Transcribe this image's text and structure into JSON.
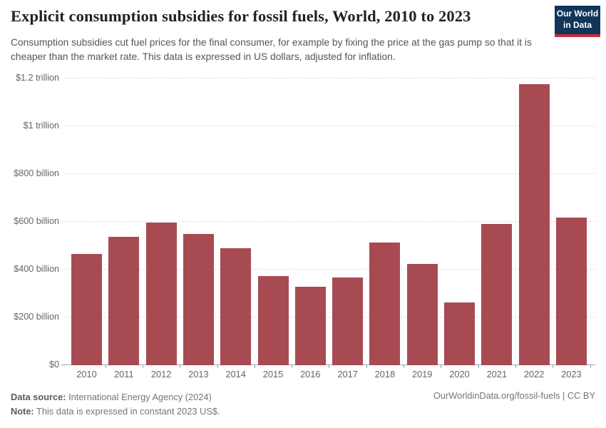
{
  "header": {
    "title": "Explicit consumption subsidies for fossil fuels, World, 2010 to 2023",
    "subtitle": "Consumption subsidies cut fuel prices for the final consumer, for example by fixing the price at the gas pump so that it is cheaper than the market rate. This data is expressed in US dollars, adjusted for inflation.",
    "logo": {
      "line1": "Our World",
      "line2": "in Data",
      "bg_color": "#12355a",
      "accent_color": "#c5303c"
    }
  },
  "chart_data": {
    "type": "bar",
    "title": "Explicit consumption subsidies for fossil fuels, World, 2010 to 2023",
    "xlabel": "",
    "ylabel": "",
    "unit": "billion US$ (constant 2023)",
    "categories": [
      "2010",
      "2011",
      "2012",
      "2013",
      "2014",
      "2015",
      "2016",
      "2017",
      "2018",
      "2019",
      "2020",
      "2021",
      "2022",
      "2023"
    ],
    "values": [
      466,
      537,
      596,
      547,
      489,
      373,
      326,
      365,
      512,
      422,
      262,
      589,
      1176,
      617
    ],
    "ylim": [
      0,
      1200
    ],
    "yticks": [
      {
        "value": 0,
        "label": "$0"
      },
      {
        "value": 200,
        "label": "$200 billion"
      },
      {
        "value": 400,
        "label": "$400 billion"
      },
      {
        "value": 600,
        "label": "$600 billion"
      },
      {
        "value": 800,
        "label": "$800 billion"
      },
      {
        "value": 1000,
        "label": "$1 trillion"
      },
      {
        "value": 1200,
        "label": "$1.2 trillion"
      }
    ],
    "grid": true,
    "legend": "none",
    "bar_color": "#a84a52",
    "gridline_color": "#dddddd",
    "axis_color": "#a3a3a3",
    "tick_label_color": "#666666"
  },
  "footer": {
    "source_label": "Data source:",
    "source_text": " International Energy Agency (2024)",
    "note_label": "Note:",
    "note_text": " This data is expressed in constant 2023 US$.",
    "right_text": "OurWorldinData.org/fossil-fuels | CC BY"
  }
}
